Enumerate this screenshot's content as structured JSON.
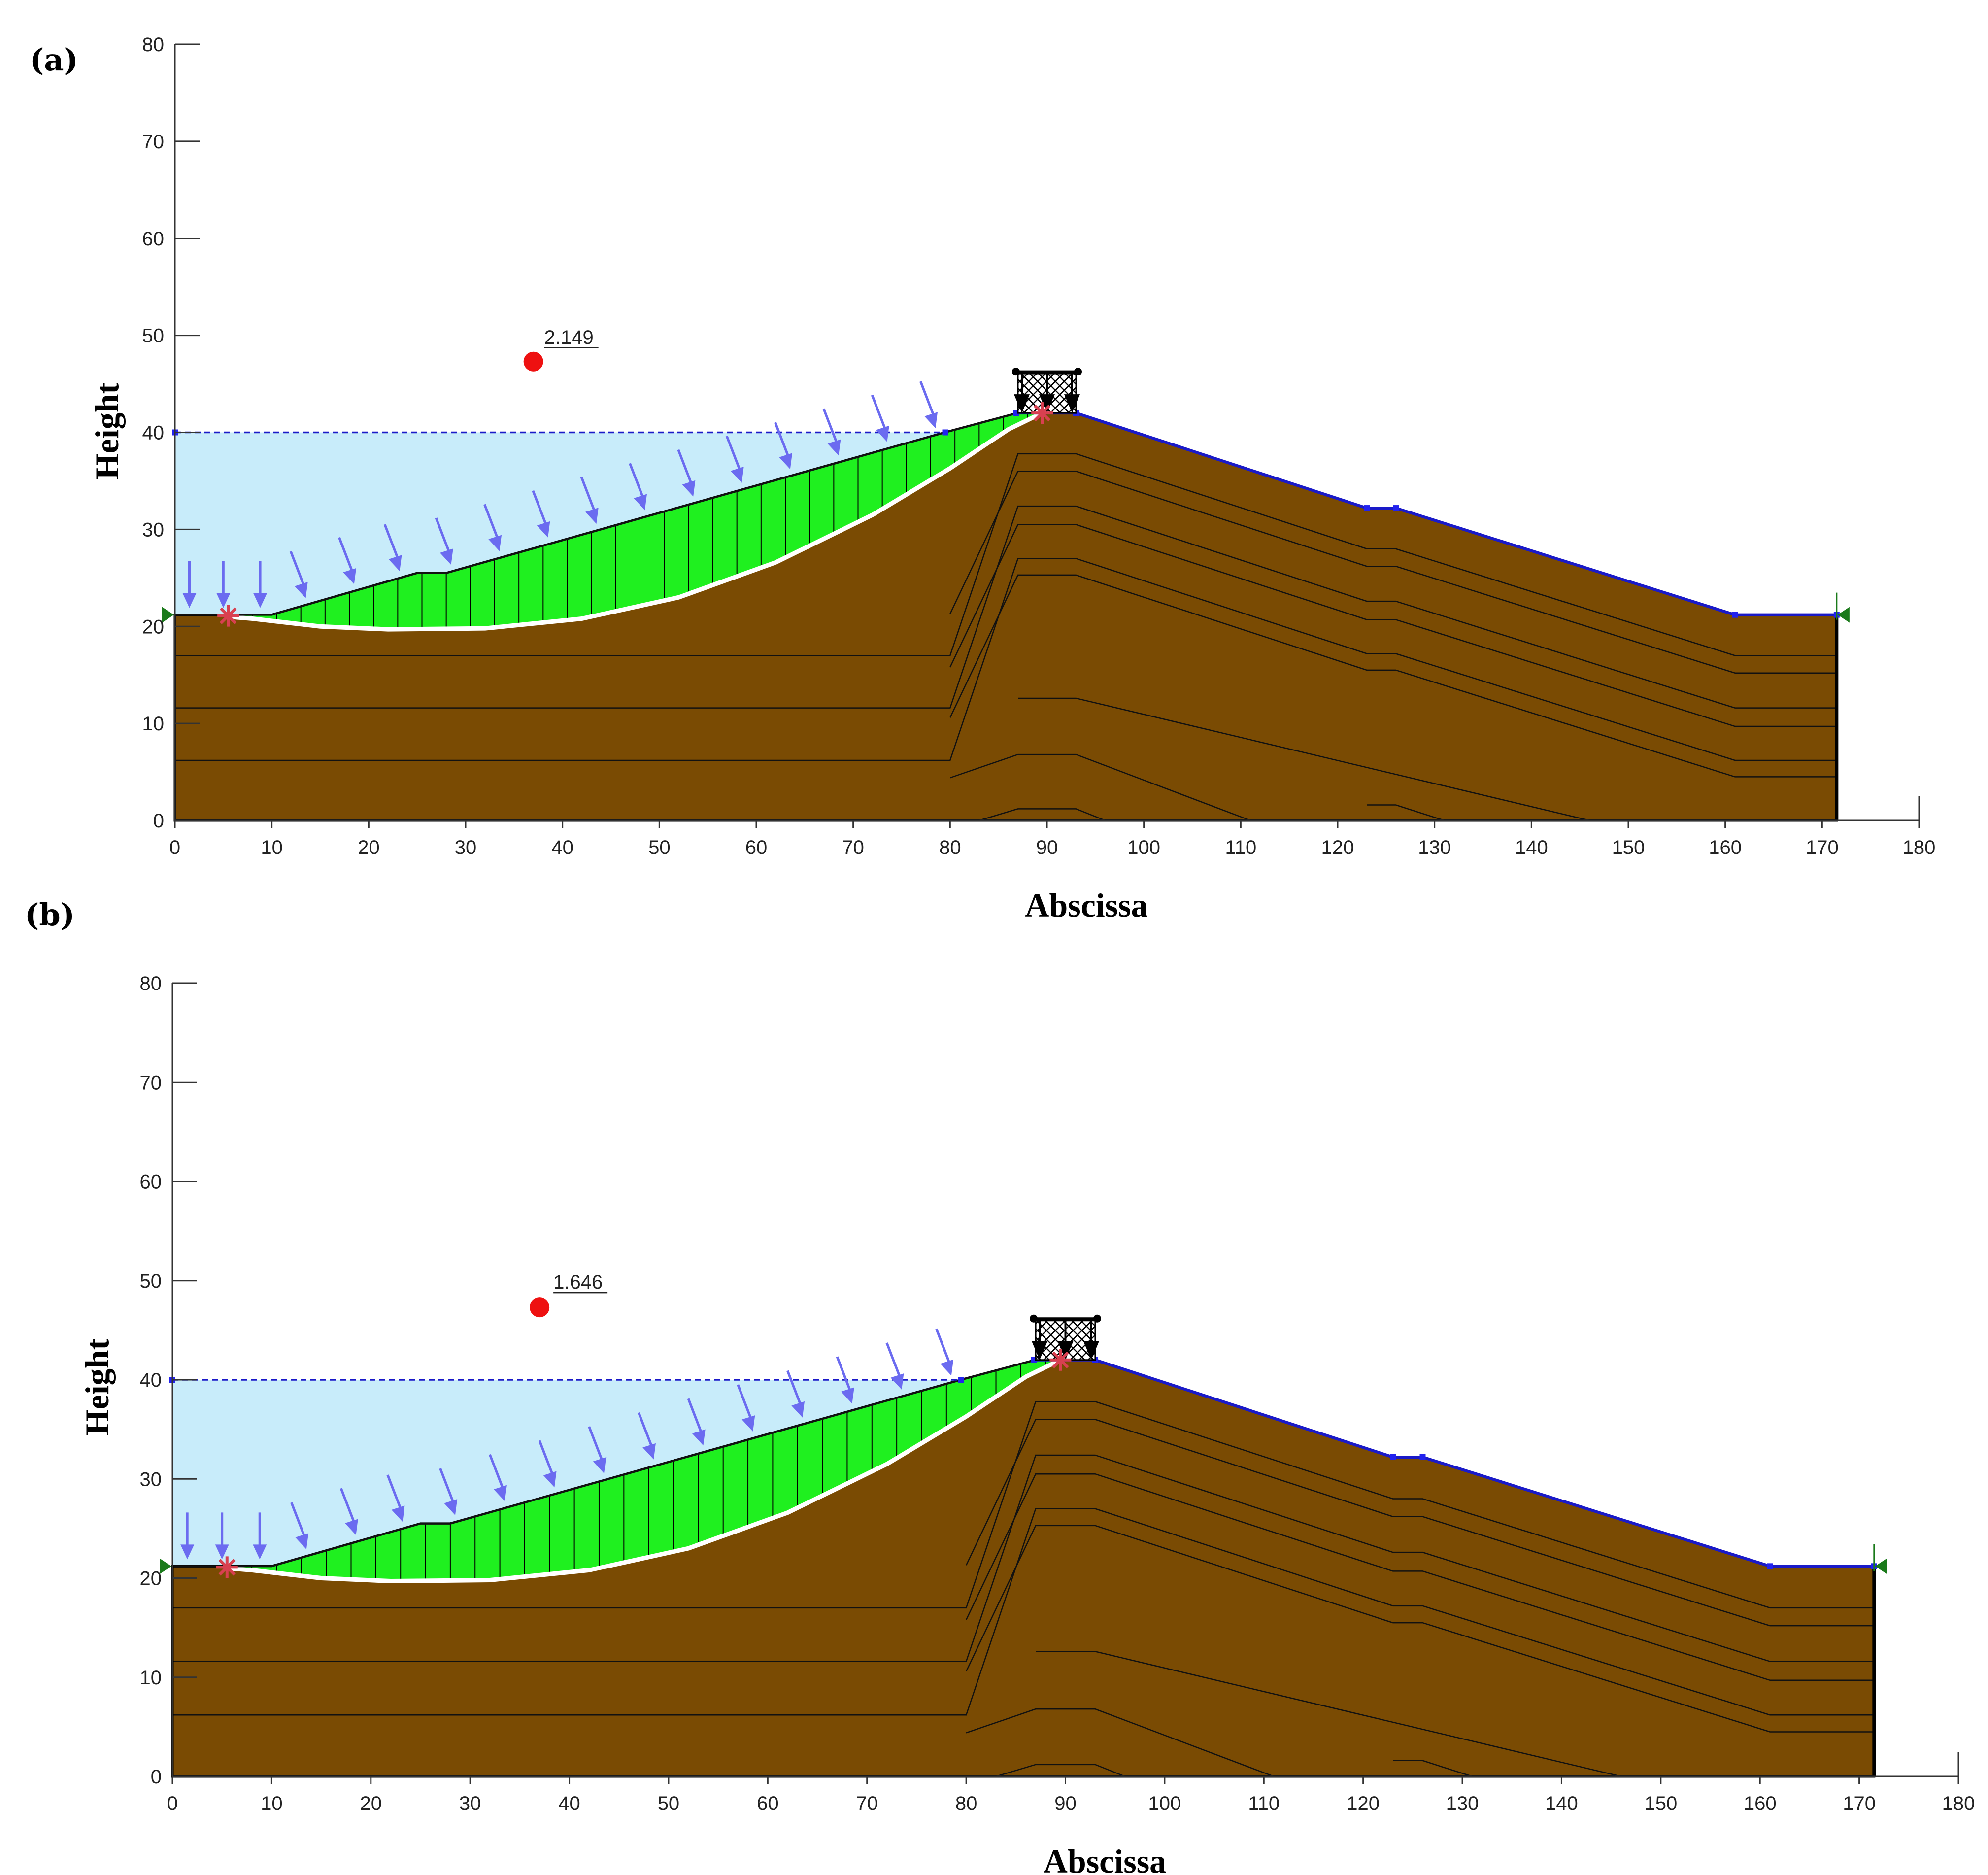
{
  "figure": {
    "panels": [
      {
        "id": "a",
        "label": "(a)",
        "factor_of_safety": "2.149",
        "xlabel": "Abscissa",
        "ylabel": "Height"
      },
      {
        "id": "b",
        "label": "(b)",
        "factor_of_safety": "1.646",
        "xlabel": "Abscissa",
        "ylabel": "Height"
      }
    ]
  },
  "chart_data": [
    {
      "type": "diagram",
      "title": "",
      "xlabel": "Abscissa",
      "ylabel": "Height",
      "xlim": [
        0,
        180
      ],
      "ylim": [
        0,
        80
      ],
      "xticks": [
        0,
        10,
        20,
        30,
        40,
        50,
        60,
        70,
        80,
        90,
        100,
        110,
        120,
        130,
        140,
        150,
        160,
        170,
        180
      ],
      "yticks": [
        0,
        10,
        20,
        30,
        40,
        50,
        60,
        70,
        80
      ],
      "water_level": 40,
      "factor_of_safety": 2.149,
      "slip_center": [
        37,
        47.3
      ],
      "ground_profile": [
        [
          0,
          21.2
        ],
        [
          10,
          21.2
        ],
        [
          25,
          25.5
        ],
        [
          28,
          25.5
        ],
        [
          79.5,
          40
        ],
        [
          87,
          42
        ],
        [
          93,
          42
        ],
        [
          123,
          32.2
        ],
        [
          126,
          32.2
        ],
        [
          161,
          21.2
        ],
        [
          171.5,
          21.2
        ]
      ],
      "slip_surface": [
        [
          5.5,
          21
        ],
        [
          8,
          20.8
        ],
        [
          15,
          20
        ],
        [
          22,
          19.7
        ],
        [
          32,
          19.8
        ],
        [
          42,
          20.8
        ],
        [
          52,
          23
        ],
        [
          62,
          26.6
        ],
        [
          72,
          31.5
        ],
        [
          80,
          36.3
        ],
        [
          86,
          40.3
        ],
        [
          89.5,
          42
        ]
      ],
      "colors": {
        "soil": "#7a4b03",
        "sliding_mass": "#1ff01f",
        "water": "#c8ecfa",
        "surface_line": "#1a1ac8",
        "load_arrows": "#6b6bf0",
        "fos_marker": "#ee1111"
      }
    },
    {
      "type": "diagram",
      "title": "",
      "xlabel": "Abscissa",
      "ylabel": "Height",
      "xlim": [
        0,
        180
      ],
      "ylim": [
        0,
        80
      ],
      "xticks": [
        0,
        10,
        20,
        30,
        40,
        50,
        60,
        70,
        80,
        90,
        100,
        110,
        120,
        130,
        140,
        150,
        160,
        170,
        180
      ],
      "yticks": [
        0,
        10,
        20,
        30,
        40,
        50,
        60,
        70,
        80
      ],
      "water_level": 40,
      "factor_of_safety": 1.646,
      "slip_center": [
        37,
        47.3
      ],
      "ground_profile": [
        [
          0,
          21.2
        ],
        [
          10,
          21.2
        ],
        [
          25,
          25.5
        ],
        [
          28,
          25.5
        ],
        [
          79.5,
          40
        ],
        [
          87,
          42
        ],
        [
          93,
          42
        ],
        [
          123,
          32.2
        ],
        [
          126,
          32.2
        ],
        [
          161,
          21.2
        ],
        [
          171.5,
          21.2
        ]
      ],
      "slip_surface": [
        [
          5.5,
          21
        ],
        [
          8,
          20.8
        ],
        [
          15,
          20
        ],
        [
          22,
          19.7
        ],
        [
          32,
          19.8
        ],
        [
          42,
          20.8
        ],
        [
          52,
          23
        ],
        [
          62,
          26.6
        ],
        [
          72,
          31.5
        ],
        [
          80,
          36.3
        ],
        [
          86,
          40.3
        ],
        [
          89.5,
          42
        ]
      ],
      "colors": {
        "soil": "#7a4b03",
        "sliding_mass": "#1ff01f",
        "water": "#c8ecfa",
        "surface_line": "#1a1ac8",
        "load_arrows": "#6b6bf0",
        "fos_marker": "#ee1111"
      }
    }
  ]
}
